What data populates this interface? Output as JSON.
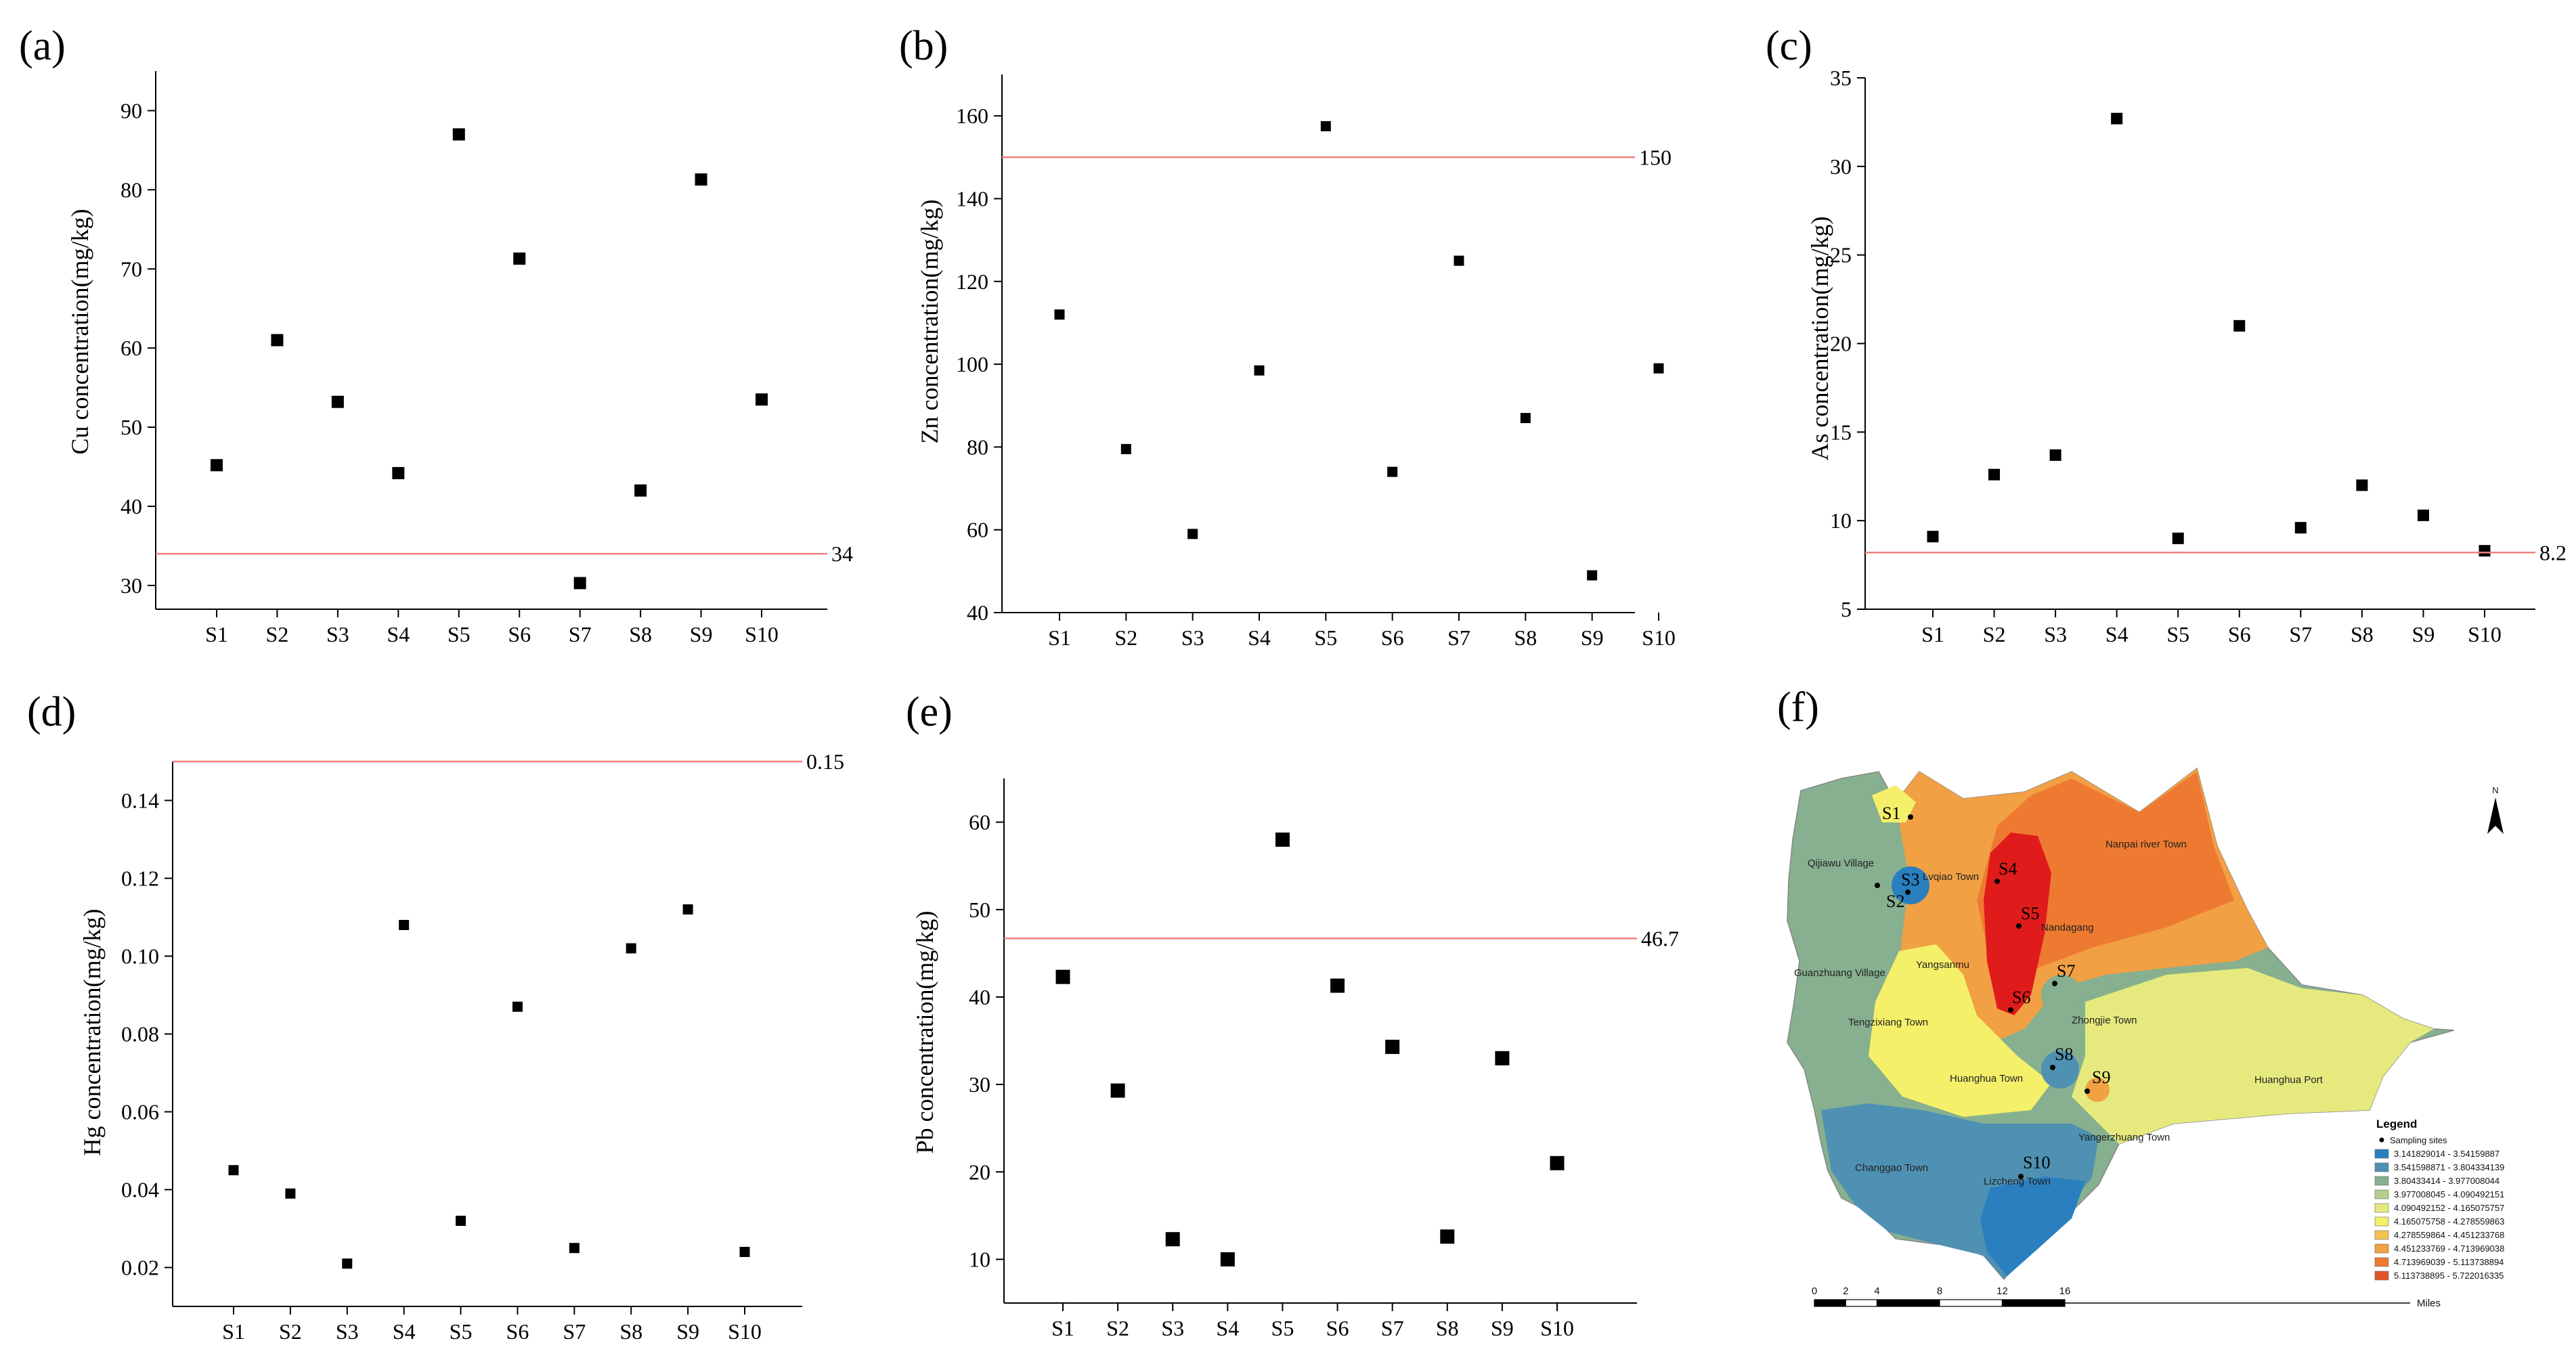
{
  "colors": {
    "marker": "#000000",
    "ref_line": "#f08080",
    "axis": "#000000",
    "map_bins": [
      "#2a7fbf",
      "#4f91b3",
      "#86b08f",
      "#b5cf8d",
      "#e6ea7e",
      "#f4f06a",
      "#f6c34e",
      "#f2a044",
      "#ee7a31",
      "#e5542a",
      "#e01b1b"
    ]
  },
  "chart_data": [
    {
      "id": "a",
      "panel_label": "(a)",
      "type": "scatter",
      "ylabel": "Cu concentration(mg/kg)",
      "categories": [
        "S1",
        "S2",
        "S3",
        "S4",
        "S5",
        "S6",
        "S7",
        "S8",
        "S9",
        "S10"
      ],
      "values": [
        45.2,
        61.0,
        53.2,
        44.2,
        87.0,
        71.3,
        30.3,
        42.0,
        81.3,
        53.5
      ],
      "ylim": [
        27,
        95
      ],
      "yticks": [
        30,
        40,
        50,
        60,
        70,
        80,
        90
      ],
      "ytick_labels": [
        "30",
        "40",
        "50",
        "60",
        "70",
        "80",
        "90"
      ],
      "reference": {
        "value": 34,
        "label": "34"
      }
    },
    {
      "id": "b",
      "panel_label": "(b)",
      "type": "scatter",
      "ylabel": "Zn concentration(mg/kg)",
      "categories": [
        "S1",
        "S2",
        "S3",
        "S4",
        "S5",
        "S6",
        "S7",
        "S8",
        "S9",
        "S10"
      ],
      "values": [
        112,
        79.5,
        59,
        98.5,
        157.5,
        74,
        125,
        87,
        49,
        99
      ],
      "ylim": [
        40,
        170
      ],
      "yticks": [
        40,
        60,
        80,
        100,
        120,
        140,
        160
      ],
      "ytick_labels": [
        "40",
        "60",
        "80",
        "100",
        "120",
        "140",
        "160"
      ],
      "reference": {
        "value": 150,
        "label": "150"
      }
    },
    {
      "id": "c",
      "panel_label": "(c)",
      "type": "scatter",
      "ylabel": "As concentration(mg/kg)",
      "categories": [
        "S1",
        "S2",
        "S3",
        "S4",
        "S5",
        "S6",
        "S7",
        "S8",
        "S9",
        "S10"
      ],
      "values": [
        9.1,
        12.6,
        13.7,
        32.7,
        9.0,
        21.0,
        9.6,
        12.0,
        10.3,
        8.3
      ],
      "ylim": [
        5,
        35
      ],
      "yticks": [
        5,
        10,
        15,
        20,
        25,
        30,
        35
      ],
      "ytick_labels": [
        "5",
        "10",
        "15",
        "20",
        "25",
        "30",
        "35"
      ],
      "reference": {
        "value": 8.2,
        "label": "8.2"
      }
    },
    {
      "id": "d",
      "panel_label": "(d)",
      "type": "scatter",
      "ylabel": "Hg concentration(mg/kg)",
      "categories": [
        "S1",
        "S2",
        "S3",
        "S4",
        "S5",
        "S6",
        "S7",
        "S8",
        "S9",
        "S10"
      ],
      "values": [
        0.045,
        0.039,
        0.021,
        0.108,
        0.032,
        0.087,
        0.025,
        0.102,
        0.112,
        0.024
      ],
      "ylim": [
        0.01,
        0.15
      ],
      "yticks": [
        0.02,
        0.04,
        0.06,
        0.08,
        0.1,
        0.12,
        0.14
      ],
      "ytick_labels": [
        "0.02",
        "0.04",
        "0.06",
        "0.08",
        "0.10",
        "0.12",
        "0.14"
      ],
      "reference": {
        "value": 0.15,
        "label": "0.15"
      }
    },
    {
      "id": "e",
      "panel_label": "(e)",
      "type": "scatter",
      "ylabel": "Pb concentration(mg/kg)",
      "categories": [
        "S1",
        "S2",
        "S3",
        "S4",
        "S5",
        "S6",
        "S7",
        "S8",
        "S9",
        "S10"
      ],
      "values": [
        42.3,
        29.3,
        12.3,
        10.0,
        58.0,
        41.3,
        34.3,
        12.6,
        33.0,
        21.0
      ],
      "ylim": [
        5,
        65
      ],
      "yticks": [
        10,
        20,
        30,
        40,
        50,
        60
      ],
      "ytick_labels": [
        "10",
        "20",
        "30",
        "40",
        "50",
        "60"
      ],
      "reference": {
        "value": 46.7,
        "label": "46.7"
      }
    }
  ],
  "map": {
    "panel_label": "(f)",
    "north": "N",
    "site_labels": [
      "S1",
      "S2",
      "S3",
      "S4",
      "S5",
      "S6",
      "S7",
      "S8",
      "S9",
      "S10"
    ],
    "place_names": [
      "Qijiawu Village",
      "Lvqiao Town",
      "Nanpai river Town",
      "Nandagang",
      "Yangsanmu",
      "Guanzhuang Village",
      "Tengzixiang Town",
      "Zhongjie Town",
      "Huanghua Town",
      "Huanghua Port",
      "Yangerzhuang Town",
      "Changgao Town",
      "Lizcheng Town"
    ],
    "legend": {
      "title": "Legend",
      "sites_label": "Sampling sites",
      "bins": [
        "3.141829014 - 3.54159887",
        "3.541598871 - 3.804334139",
        "3.80433414 - 3.977008044",
        "3.977008045 - 4.090492151",
        "4.090492152 - 4.165075757",
        "4.165075758 - 4.278559863",
        "4.278559864 - 4.451233768",
        "4.451233769 - 4.713969038",
        "4.713969039 - 5.113738894",
        "5.113738895 - 5.722016335"
      ]
    },
    "scale": {
      "ticks": [
        "0",
        "2",
        "4",
        "8",
        "12",
        "16"
      ],
      "unit": "Miles"
    }
  }
}
